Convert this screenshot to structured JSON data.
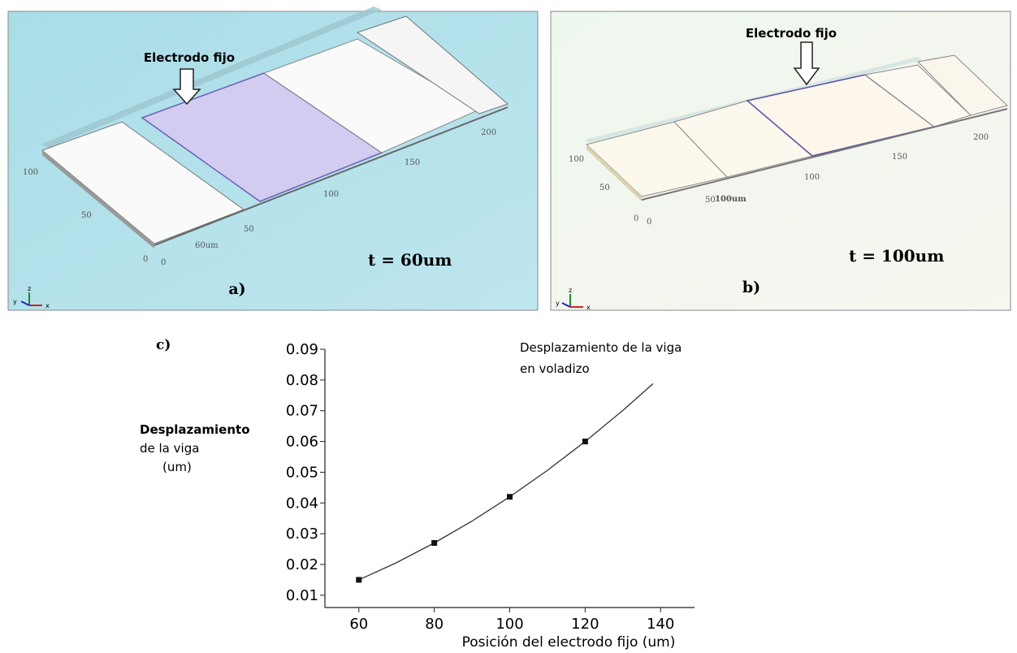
{
  "panels": [
    {
      "label": "a)",
      "annotation": "Electrodo fijo",
      "thickness": "t = 60um",
      "dimension": "60um",
      "axis_numbers": [
        "100",
        "50",
        "0",
        "0",
        "50",
        "100",
        "150",
        "200"
      ],
      "axes": [
        "z",
        "y",
        "x"
      ]
    },
    {
      "label": "b)",
      "annotation": "Electrodo fijo",
      "thickness": "t = 100um",
      "dimension": "100um",
      "axis_numbers": [
        "100",
        "50",
        "0",
        "0",
        "50",
        "100",
        "150",
        "200"
      ],
      "axes": [
        "z",
        "y",
        "x"
      ]
    }
  ],
  "chart_data": {
    "type": "line",
    "panel_label": "c)",
    "title": [
      "Desplazamiento de la viga",
      "en voladizo"
    ],
    "ylabel": [
      "Desplazamiento",
      "de la viga",
      "(um)"
    ],
    "xlabel": "Posición del electrodo fijo (um)",
    "series": [
      {
        "style": "markers",
        "color": "#111111",
        "x": [
          60,
          80,
          100,
          120
        ],
        "values": [
          0.015,
          0.027,
          0.042,
          0.06
        ]
      },
      {
        "style": "line",
        "color": "#333333",
        "x": [
          60,
          70,
          80,
          90,
          100,
          110,
          120,
          130,
          138
        ],
        "values": [
          0.015,
          0.0206,
          0.027,
          0.0341,
          0.042,
          0.0506,
          0.06,
          0.0701,
          0.0788
        ]
      }
    ],
    "xlim": [
      51,
      149
    ],
    "xticks": [
      60,
      80,
      100,
      120,
      140
    ],
    "ylim": [
      0.006,
      0.09
    ],
    "yticks": [
      0.01,
      0.02,
      0.03,
      0.04,
      0.05,
      0.06,
      0.07,
      0.08,
      0.09
    ]
  }
}
